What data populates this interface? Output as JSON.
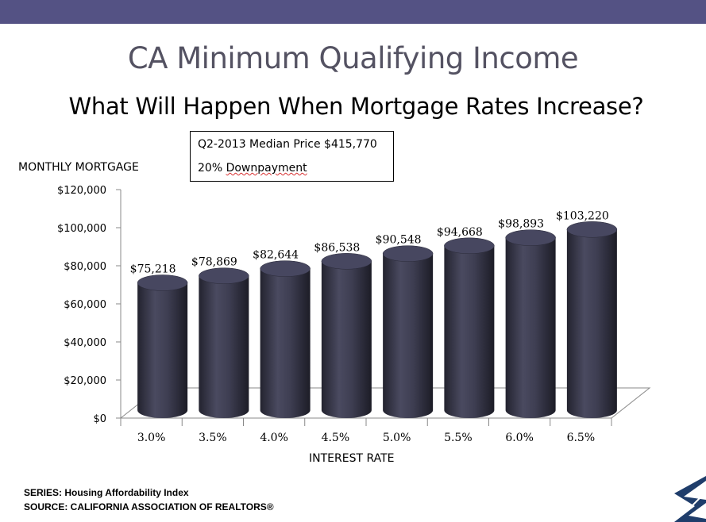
{
  "header": {
    "title": "CA Minimum Qualifying Income",
    "subtitle": "What Will Happen When Mortgage Rates Increase?"
  },
  "infobox": {
    "line1": "Q2-2013 Median Price $415,770",
    "line2_prefix": "20% ",
    "line2_word": "Downpayment"
  },
  "chart_data": {
    "type": "bar",
    "title": "CA Minimum Qualifying Income",
    "subtitle": "What Will Happen When Mortgage Rates Increase?",
    "xlabel": "INTEREST RATE",
    "ylabel": "MONTHLY MORTGAGE",
    "categories": [
      "3.0%",
      "3.5%",
      "4.0%",
      "4.5%",
      "5.0%",
      "5.5%",
      "6.0%",
      "6.5%"
    ],
    "values": [
      75218,
      78869,
      82644,
      86538,
      90548,
      94668,
      98893,
      103220
    ],
    "value_labels": [
      "$75,218",
      "$78,869",
      "$82,644",
      "$86,538",
      "$90,548",
      "$94,668",
      "$98,893",
      "$103,220"
    ],
    "ylim": [
      0,
      120000
    ],
    "yticks": [
      0,
      20000,
      40000,
      60000,
      80000,
      100000,
      120000
    ],
    "ytick_labels": [
      "$0",
      "$20,000",
      "$40,000",
      "$60,000",
      "$80,000",
      "$100,000",
      "$120,000"
    ],
    "bar_color": "#3a3a4e",
    "grid": false,
    "legend": "none"
  },
  "footer": {
    "series": "SERIES: Housing Affordability Index",
    "source": "SOURCE:  CALIFORNIA ASSOCIATION OF REALTORS®"
  },
  "colors": {
    "topbar": "#545284",
    "title": "#545262",
    "logo": "#1f3d6b"
  }
}
